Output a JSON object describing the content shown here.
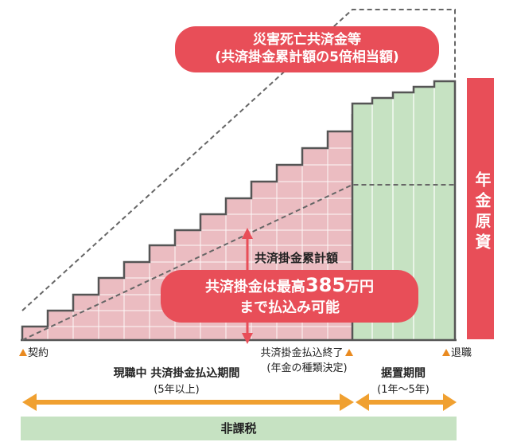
{
  "top_pill": {
    "line1": "災害死亡共済金等",
    "line2": "(共済掛金累計額の5倍相当額)"
  },
  "side_label": "年金原資",
  "cumulative_label": "共済掛金累計額",
  "mid_pill": {
    "pre": "共済掛金は最高",
    "amount": "385",
    "post": "万円",
    "line2": "まで払込み可能"
  },
  "markers": {
    "start": "契約",
    "end_payment": "共済掛金払込終了",
    "end_payment_sub": "(年金の種類決定)",
    "retire": "退職"
  },
  "periods": {
    "active": {
      "title": "現職中 共済掛金払込期間",
      "sub": "(5年以上)"
    },
    "deferral": {
      "title": "据置期間",
      "sub": "(1年〜5年)"
    }
  },
  "tax_label": "非課税",
  "colors": {
    "red": "#e84e58",
    "pink": "#e5a3ab",
    "green": "#c6e2c2",
    "orange": "#f0a030",
    "border": "#555555"
  }
}
